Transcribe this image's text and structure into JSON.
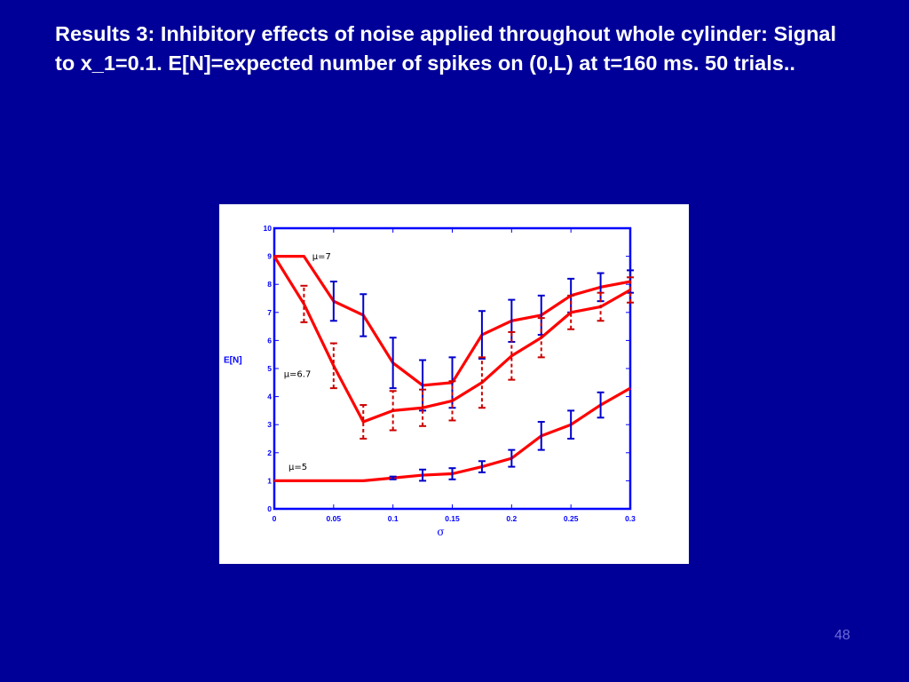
{
  "slide": {
    "title": "Results 3: Inhibitory effects of noise applied throughout whole cylinder: Signal to x_1=0.1. E[N]=expected number of spikes on (0,L) at t=160 ms. 50 trials..",
    "page_number": "48"
  },
  "colors": {
    "background": "#000099",
    "title_text": "#ffffff",
    "axis": "#0000ff",
    "series_line": "#ff0000",
    "error_bar_solid": "#0000cc",
    "error_bar_dashed": "#cc0000"
  },
  "chart_data": {
    "type": "line",
    "title": "",
    "xlabel": "σ",
    "ylabel": "E[N]",
    "xlim": [
      0,
      0.3
    ],
    "ylim": [
      0,
      10
    ],
    "xticks": [
      "0",
      "0.05",
      "0.1",
      "0.15",
      "0.2",
      "0.25",
      "0.3"
    ],
    "yticks": [
      "0",
      "1",
      "2",
      "3",
      "4",
      "5",
      "6",
      "7",
      "8",
      "9",
      "10"
    ],
    "grid": false,
    "series": [
      {
        "name": "μ=7",
        "errorbar_style": "solid",
        "x": [
          0,
          0.025,
          0.05,
          0.075,
          0.1,
          0.125,
          0.15,
          0.175,
          0.2,
          0.225,
          0.25,
          0.275,
          0.3
        ],
        "y": [
          9.0,
          9.0,
          7.4,
          6.9,
          5.2,
          4.4,
          4.5,
          6.2,
          6.7,
          6.9,
          7.6,
          7.9,
          8.1
        ],
        "err": [
          null,
          null,
          0.7,
          0.75,
          0.9,
          0.9,
          0.9,
          0.85,
          0.75,
          0.7,
          0.6,
          0.5,
          0.4
        ]
      },
      {
        "name": "μ=6.7",
        "errorbar_style": "dashed",
        "x": [
          0,
          0.025,
          0.05,
          0.075,
          0.1,
          0.125,
          0.15,
          0.175,
          0.2,
          0.225,
          0.25,
          0.275,
          0.3
        ],
        "y": [
          9.0,
          7.3,
          5.1,
          3.1,
          3.5,
          3.6,
          3.85,
          4.5,
          5.45,
          6.1,
          7.0,
          7.2,
          7.8
        ],
        "err": [
          null,
          0.65,
          0.8,
          0.6,
          0.7,
          0.65,
          0.7,
          0.9,
          0.85,
          0.7,
          0.6,
          0.5,
          0.45
        ]
      },
      {
        "name": "μ=5",
        "errorbar_style": "solid",
        "x": [
          0,
          0.025,
          0.05,
          0.075,
          0.1,
          0.125,
          0.15,
          0.175,
          0.2,
          0.225,
          0.25,
          0.275,
          0.3
        ],
        "y": [
          1.0,
          1.0,
          1.0,
          1.0,
          1.1,
          1.2,
          1.25,
          1.5,
          1.8,
          2.6,
          3.0,
          3.7,
          4.3
        ],
        "err": [
          null,
          null,
          null,
          null,
          0.05,
          0.2,
          0.2,
          0.2,
          0.3,
          0.5,
          0.5,
          0.45,
          null
        ]
      }
    ],
    "annotations": [
      {
        "text": "μ=7",
        "x": 0.032,
        "y": 8.9
      },
      {
        "text": "μ=6.7",
        "x": 0.008,
        "y": 4.7
      },
      {
        "text": "μ=5",
        "x": 0.012,
        "y": 1.4
      }
    ]
  }
}
